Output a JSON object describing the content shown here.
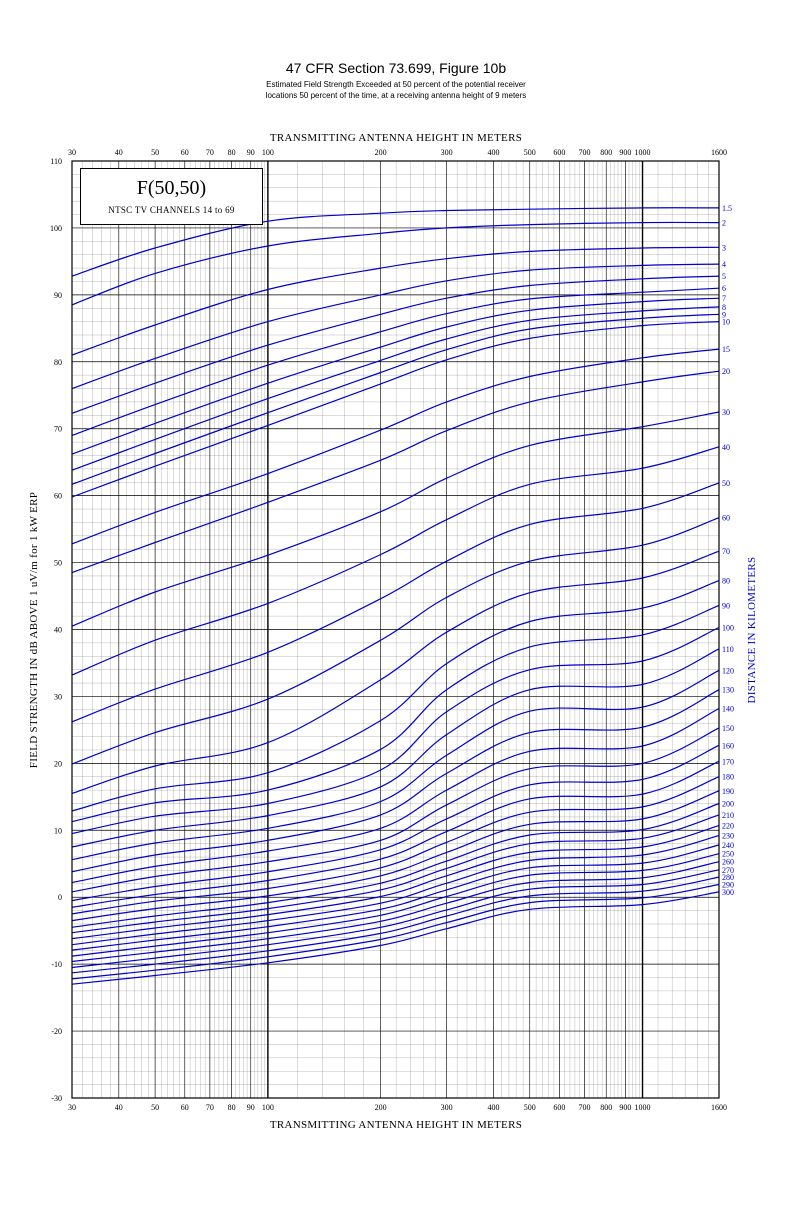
{
  "header": {
    "title": "47 CFR Section 73.699, Figure 10b",
    "subtitle_line1": "Estimated Field Strength Exceeded at 50 percent of the potential receiver",
    "subtitle_line2": "locations 50 percent of the time, at a receiving antenna height of 9 meters"
  },
  "legend_box": {
    "title": "F(50,50)",
    "subtitle": "NTSC TV CHANNELS 14 to 69"
  },
  "colors": {
    "curve": "#0000cc",
    "grid": "#000000",
    "background": "#ffffff"
  },
  "chart_data": {
    "type": "line",
    "title": "F(50,50)",
    "xlabel": "TRANSMITTING ANTENNA HEIGHT IN METERS",
    "ylabel": "FIELD STRENGTH IN dB ABOVE 1 uV/m for 1 kW ERP",
    "right_label": "DISTANCE IN KILOMETERS",
    "x_scale": "log",
    "xlim": [
      30,
      1600
    ],
    "ylim": [
      -30,
      110
    ],
    "x_ticks": [
      30,
      40,
      50,
      60,
      70,
      80,
      90,
      100,
      200,
      300,
      400,
      500,
      600,
      700,
      800,
      900,
      1000,
      1600
    ],
    "y_ticks": [
      -30,
      -20,
      -10,
      0,
      10,
      20,
      30,
      40,
      50,
      60,
      70,
      80,
      90,
      100,
      110
    ],
    "y_tick_labels": [
      "-30",
      "-20",
      "-10",
      "0",
      "10",
      "20",
      "30",
      "40",
      "50",
      "60",
      "70",
      "80",
      "90",
      "100",
      "110"
    ],
    "grid": true,
    "x": [
      30,
      50,
      100,
      200,
      300,
      500,
      1000,
      1600
    ],
    "series": [
      {
        "name": "1.5",
        "values": [
          92.8,
          97,
          101,
          102.2,
          102.6,
          102.8,
          103,
          103
        ]
      },
      {
        "name": "2",
        "values": [
          88.5,
          93.2,
          97.3,
          99.2,
          100,
          100.5,
          100.8,
          100.8
        ]
      },
      {
        "name": "3",
        "values": [
          81,
          85.5,
          90.8,
          94,
          95.4,
          96.5,
          97,
          97.1
        ]
      },
      {
        "name": "4",
        "values": [
          76,
          80.5,
          86,
          90,
          92.1,
          93.7,
          94.4,
          94.6
        ]
      },
      {
        "name": "5",
        "values": [
          72.3,
          76.8,
          82.5,
          87.1,
          89.5,
          91.4,
          92.4,
          92.8
        ]
      },
      {
        "name": "6",
        "values": [
          69,
          73.6,
          79.5,
          84.5,
          87.2,
          89.4,
          90.4,
          91
        ]
      },
      {
        "name": "7",
        "values": [
          66.2,
          70.8,
          76.8,
          82.2,
          85.2,
          87.7,
          89,
          89.5
        ]
      },
      {
        "name": "8",
        "values": [
          63.8,
          68.4,
          74.5,
          80.2,
          83.4,
          86.2,
          87.6,
          88.2
        ]
      },
      {
        "name": "9",
        "values": [
          61.7,
          66.3,
          72.4,
          78.4,
          81.8,
          84.9,
          86.5,
          87.1
        ]
      },
      {
        "name": "10",
        "values": [
          59.8,
          64.4,
          70.5,
          76.7,
          80.3,
          83.5,
          85.4,
          86
        ]
      },
      {
        "name": "15",
        "values": [
          52.8,
          57.5,
          63.3,
          69.8,
          74,
          77.8,
          80.6,
          81.9
        ]
      },
      {
        "name": "20",
        "values": [
          48.5,
          53,
          59,
          65.3,
          69.7,
          74,
          77,
          78.6
        ]
      },
      {
        "name": "30",
        "values": [
          40.5,
          45.6,
          51.1,
          57.6,
          62.6,
          67.5,
          70.3,
          72.5
        ]
      },
      {
        "name": "40",
        "values": [
          33.2,
          38.4,
          43.9,
          51.2,
          56.4,
          61.7,
          64.1,
          67.3
        ]
      },
      {
        "name": "50",
        "values": [
          26.2,
          31.1,
          36.6,
          44.6,
          50.2,
          55.7,
          58.1,
          61.9
        ]
      },
      {
        "name": "60",
        "values": [
          19.9,
          24.6,
          29.6,
          38.4,
          44.8,
          50.2,
          52.6,
          56.7
        ]
      },
      {
        "name": "70",
        "values": [
          15.5,
          19.6,
          23.1,
          32.5,
          39.6,
          45.5,
          47.7,
          51.7
        ]
      },
      {
        "name": "80",
        "values": [
          12.9,
          16.2,
          18.6,
          26.4,
          34.9,
          41.2,
          43.2,
          47.3
        ]
      },
      {
        "name": "90",
        "values": [
          11.3,
          14.1,
          16,
          22.1,
          31,
          37.4,
          39.2,
          43.6
        ]
      },
      {
        "name": "100",
        "values": [
          9.5,
          12.1,
          14,
          19,
          27.7,
          34,
          35.3,
          40.3
        ]
      },
      {
        "name": "110",
        "values": [
          7.5,
          10,
          12.2,
          16.5,
          24.3,
          31,
          31.8,
          37.1
        ]
      },
      {
        "name": "120",
        "values": [
          5.6,
          8.1,
          10.3,
          14.3,
          21.2,
          27.8,
          28.4,
          33.9
        ]
      },
      {
        "name": "130",
        "values": [
          3.8,
          6.3,
          8.5,
          12.3,
          18.5,
          24.6,
          25.4,
          31
        ]
      },
      {
        "name": "140",
        "values": [
          2.2,
          4.6,
          6.9,
          10.3,
          16,
          21.8,
          22.6,
          28.2
        ]
      },
      {
        "name": "150",
        "values": [
          0.8,
          3.1,
          5.3,
          8.5,
          13.8,
          19.2,
          20,
          25.3
        ]
      },
      {
        "name": "160",
        "values": [
          -0.5,
          1.6,
          3.8,
          7.1,
          11.7,
          16.8,
          17.6,
          22.7
        ]
      },
      {
        "name": "170",
        "values": [
          -1.5,
          0.4,
          2.5,
          5.7,
          9.8,
          14.7,
          15.4,
          20.3
        ]
      },
      {
        "name": "180",
        "values": [
          -2.5,
          -0.6,
          1.3,
          4.4,
          8.2,
          12.7,
          13.5,
          18
        ]
      },
      {
        "name": "190",
        "values": [
          -3.5,
          -1.7,
          0.2,
          3.2,
          6.7,
          10.9,
          11.7,
          15.9
        ]
      },
      {
        "name": "200",
        "values": [
          -4.5,
          -2.8,
          -0.8,
          2.1,
          5.4,
          9.3,
          10.1,
          14
        ]
      },
      {
        "name": "210",
        "values": [
          -5.3,
          -3.7,
          -1.7,
          1.1,
          4.3,
          8,
          8.8,
          12.3
        ]
      },
      {
        "name": "220",
        "values": [
          -6.2,
          -4.6,
          -2.6,
          0.1,
          3.2,
          6.7,
          7.5,
          10.7
        ]
      },
      {
        "name": "230",
        "values": [
          -7.1,
          -5.5,
          -3.5,
          -0.9,
          2.1,
          5.5,
          6.3,
          9.2
        ]
      },
      {
        "name": "240",
        "values": [
          -7.9,
          -6.4,
          -4.4,
          -1.8,
          1.1,
          4.4,
          5.1,
          7.8
        ]
      },
      {
        "name": "250",
        "values": [
          -8.8,
          -7.3,
          -5.3,
          -2.7,
          0.1,
          3.3,
          4,
          6.5
        ]
      },
      {
        "name": "260",
        "values": [
          -9.6,
          -8.2,
          -6.2,
          -3.6,
          -0.9,
          2.2,
          2.9,
          5.3
        ]
      },
      {
        "name": "270",
        "values": [
          -10.5,
          -9.1,
          -7.1,
          -4.5,
          -1.9,
          1.2,
          1.9,
          4.1
        ]
      },
      {
        "name": "280",
        "values": [
          -11.3,
          -10,
          -8,
          -5.4,
          -2.8,
          0.2,
          0.9,
          3
        ]
      },
      {
        "name": "290",
        "values": [
          -12.2,
          -10.9,
          -8.9,
          -6.3,
          -3.8,
          -0.8,
          -0.1,
          1.9
        ]
      },
      {
        "name": "300",
        "values": [
          -13,
          -11.7,
          -9.8,
          -7.2,
          -4.7,
          -1.8,
          -1.1,
          0.8
        ]
      }
    ]
  }
}
